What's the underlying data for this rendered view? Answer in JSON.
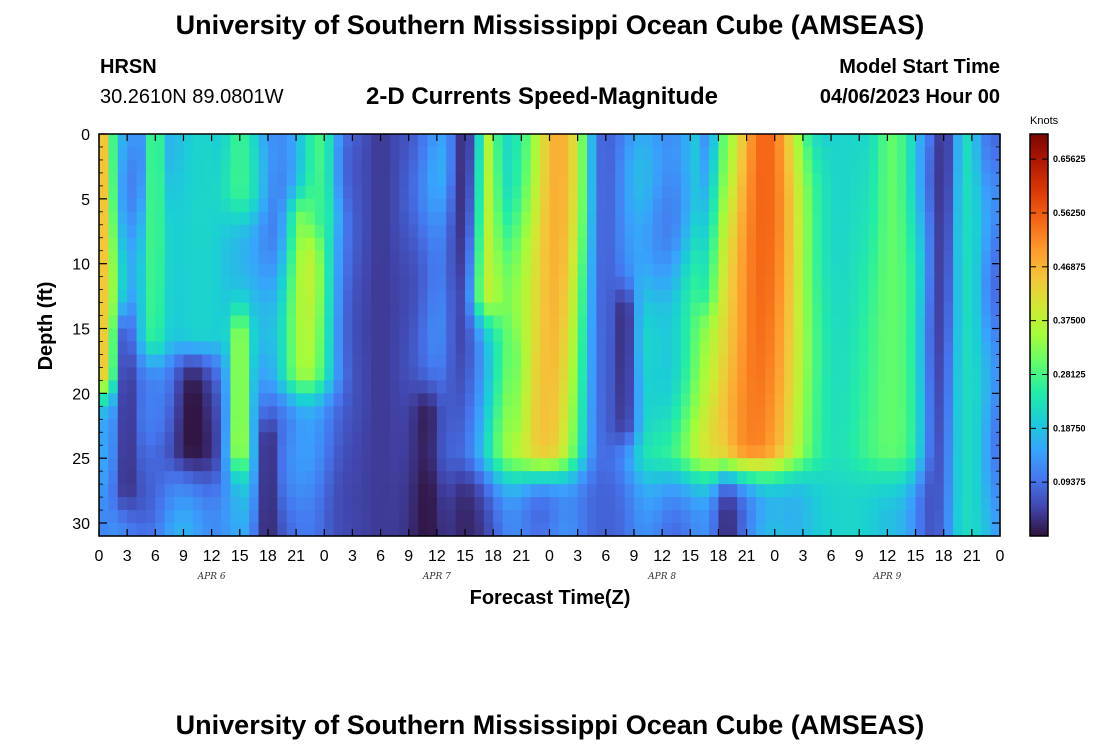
{
  "header": {
    "title": "University of Southern Mississippi Ocean Cube (AMSEAS)",
    "station": "HRSN",
    "coords": "30.2610N  89.0801W",
    "plot_title": "2-D Currents Speed-Magnitude",
    "model_start_label": "Model Start Time",
    "model_start_value": "04/06/2023 Hour 00"
  },
  "footer": {
    "title": "University of Southern Mississippi Ocean Cube (AMSEAS)"
  },
  "chart_data": {
    "type": "heatmap",
    "title": "2-D Currents Speed-Magnitude",
    "xlabel": "Forecast Time(Z)",
    "ylabel": "Depth (ft)",
    "x_unit": "hours since 04/06/2023 00Z",
    "xlim": [
      0,
      96
    ],
    "ylim": [
      31,
      0
    ],
    "x_ticks": [
      0,
      3,
      6,
      9,
      12,
      15,
      18,
      21,
      24,
      27,
      30,
      33,
      36,
      39,
      42,
      45,
      48,
      51,
      54,
      57,
      60,
      63,
      66,
      69,
      72,
      75,
      78,
      81,
      84,
      87,
      90,
      93,
      96
    ],
    "x_tick_labels": [
      "0",
      "3",
      "6",
      "9",
      "12",
      "15",
      "18",
      "21",
      "0",
      "3",
      "6",
      "9",
      "12",
      "15",
      "18",
      "21",
      "0",
      "3",
      "6",
      "9",
      "12",
      "15",
      "18",
      "21",
      "0",
      "3",
      "6",
      "9",
      "12",
      "15",
      "18",
      "21",
      "0"
    ],
    "y_ticks": [
      0,
      5,
      10,
      15,
      20,
      25,
      30
    ],
    "y_tick_labels": [
      "0",
      "5",
      "10",
      "15",
      "20",
      "25",
      "30"
    ],
    "date_labels": [
      {
        "hour": 12,
        "text": "APR 6"
      },
      {
        "hour": 36,
        "text": "APR 7"
      },
      {
        "hour": 60,
        "text": "APR 8"
      },
      {
        "hour": 84,
        "text": "APR 9"
      }
    ],
    "colorbar": {
      "unit": "Knots",
      "min": 0.0,
      "max": 0.7,
      "labels": [
        "0.65625",
        "0.56250",
        "0.46875",
        "0.37500",
        "0.28125",
        "0.18750",
        "0.09375"
      ]
    },
    "features": [
      {
        "t": 0.5,
        "d0": 0,
        "d1": 18,
        "peak": 0.45,
        "w": 0.7
      },
      {
        "t": 3.0,
        "d0": 16,
        "d1": 27,
        "peak": 0.03,
        "w": 0.8
      },
      {
        "t": 6.0,
        "d0": 0,
        "d1": 15,
        "peak": 0.32,
        "w": 0.7
      },
      {
        "t": 10.0,
        "d0": 18,
        "d1": 24,
        "peak": 0.0,
        "w": 1.8
      },
      {
        "t": 11.0,
        "d0": 0,
        "d1": 15,
        "peak": 0.21,
        "w": 2.5
      },
      {
        "t": 15.0,
        "d0": 0,
        "d1": 4,
        "peak": 0.27,
        "w": 1.2
      },
      {
        "t": 15.0,
        "d0": 16,
        "d1": 24,
        "peak": 0.36,
        "w": 0.7
      },
      {
        "t": 18.0,
        "d0": 24,
        "d1": 31,
        "peak": 0.02,
        "w": 0.8
      },
      {
        "t": 22.5,
        "d0": 7,
        "d1": 18,
        "peak": 0.4,
        "w": 1.6
      },
      {
        "t": 23.5,
        "d0": 0,
        "d1": 6,
        "peak": 0.28,
        "w": 1.2
      },
      {
        "t": 30.0,
        "d0": 0,
        "d1": 31,
        "peak": 0.04,
        "w": 2.2
      },
      {
        "t": 35.0,
        "d0": 22,
        "d1": 31,
        "peak": 0.0,
        "w": 1.2
      },
      {
        "t": 39.0,
        "d0": 0,
        "d1": 31,
        "peak": 0.02,
        "w": 1.0
      },
      {
        "t": 41.5,
        "d0": 0,
        "d1": 12,
        "peak": 0.36,
        "w": 0.8
      },
      {
        "t": 45.0,
        "d0": 18,
        "d1": 22,
        "peak": 0.0,
        "w": 0.6
      },
      {
        "t": 49.0,
        "d0": 0,
        "d1": 24,
        "peak": 0.48,
        "w": 2.7
      },
      {
        "t": 54.0,
        "d0": 0,
        "d1": 31,
        "peak": 0.08,
        "w": 1.3
      },
      {
        "t": 56.0,
        "d0": 14,
        "d1": 22,
        "peak": 0.01,
        "w": 0.8
      },
      {
        "t": 65.0,
        "d0": 0,
        "d1": 12,
        "peak": 0.02,
        "w": 0.6
      },
      {
        "t": 67.0,
        "d0": 25,
        "d1": 31,
        "peak": 0.02,
        "w": 0.8
      },
      {
        "t": 71.0,
        "d0": 0,
        "d1": 24,
        "peak": 0.55,
        "w": 3.3
      },
      {
        "t": 80.0,
        "d0": 0,
        "d1": 31,
        "peak": 0.21,
        "w": 2.2
      },
      {
        "t": 84.5,
        "d0": 0,
        "d1": 24,
        "peak": 0.3,
        "w": 1.6
      },
      {
        "t": 90.0,
        "d0": 0,
        "d1": 31,
        "peak": 0.03,
        "w": 0.8
      },
      {
        "t": 92.5,
        "d0": 0,
        "d1": 31,
        "peak": 0.22,
        "w": 0.8
      }
    ],
    "base_speed": 0.13
  }
}
